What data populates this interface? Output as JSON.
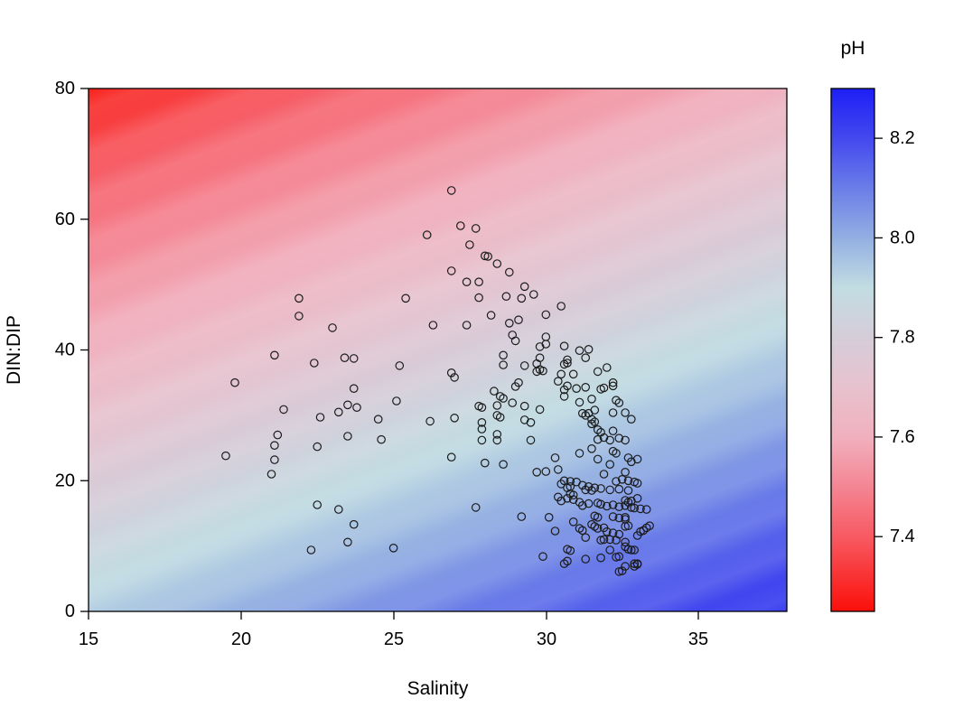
{
  "chart_data": {
    "type": "scatter",
    "title": "",
    "xlabel": "Salinity",
    "ylabel": "DIN:DIP",
    "xlim": [
      15,
      37.9
    ],
    "ylim": [
      0,
      80
    ],
    "x_ticks": [
      15,
      20,
      25,
      30,
      35
    ],
    "x_tick_labels": [
      "15",
      "20",
      "25",
      "30",
      "35"
    ],
    "y_ticks": [
      0,
      20,
      40,
      60,
      80
    ],
    "y_tick_labels": [
      "0",
      "20",
      "40",
      "60",
      "80"
    ],
    "grid": false,
    "legend_position": "right",
    "colorbar": {
      "title": "pH",
      "range": [
        7.25,
        8.3
      ],
      "ticks": [
        8.2,
        8.0,
        7.8,
        7.6,
        7.4
      ],
      "tick_labels": [
        "8.2",
        "8.0",
        "7.8",
        "7.6",
        "7.4"
      ],
      "color_high": "#1d1ff6",
      "color_mid": "#d5cdd9",
      "color_low": "#fb0f0a",
      "gradient_stops_top_to_bottom": [
        "#1d1ff6",
        "#4348ee",
        "#6a7de8",
        "#93afe2",
        "#c2dce2",
        "#d5cdd9",
        "#e7c2ce",
        "#f1b0be",
        "#f48694",
        "#f75a62",
        "#fb0f0a"
      ]
    },
    "background_surface": {
      "variable": "pH",
      "description": "Diagonal gradient fill: pH increases toward bottom-right (high Salinity, low DIN:DIP)",
      "corner_pH": {
        "top_left": 7.3,
        "top_right": 7.62,
        "bottom_left": 7.93,
        "bottom_right": 8.25
      },
      "color_top_left": "#f9201a",
      "color_top_right": "#f5c0ca",
      "color_bottom_left": "#c8d2e0",
      "color_bottom_right": "#3439f1"
    },
    "points": [
      [
        26.9,
        64.4
      ],
      [
        26.1,
        57.6
      ],
      [
        26.9,
        52.1
      ],
      [
        21.9,
        47.9
      ],
      [
        25.4,
        47.9
      ],
      [
        21.9,
        45.2
      ],
      [
        23.0,
        43.4
      ],
      [
        26.3,
        43.8
      ],
      [
        21.1,
        39.2
      ],
      [
        22.4,
        38.0
      ],
      [
        23.4,
        38.8
      ],
      [
        23.7,
        38.7
      ],
      [
        25.2,
        37.6
      ],
      [
        19.8,
        35.0
      ],
      [
        26.9,
        36.5
      ],
      [
        27.0,
        35.8
      ],
      [
        27.2,
        59.0
      ],
      [
        27.7,
        58.6
      ],
      [
        27.5,
        56.1
      ],
      [
        28.0,
        54.4
      ],
      [
        28.1,
        54.3
      ],
      [
        28.4,
        53.2
      ],
      [
        28.8,
        51.9
      ],
      [
        27.4,
        50.4
      ],
      [
        27.8,
        50.4
      ],
      [
        29.3,
        49.7
      ],
      [
        27.8,
        48.0
      ],
      [
        28.7,
        48.2
      ],
      [
        29.2,
        47.9
      ],
      [
        29.6,
        48.5
      ],
      [
        30.5,
        46.7
      ],
      [
        30.0,
        45.4
      ],
      [
        28.2,
        45.3
      ],
      [
        27.4,
        43.8
      ],
      [
        28.8,
        44.1
      ],
      [
        29.1,
        44.6
      ],
      [
        28.9,
        42.3
      ],
      [
        29.0,
        41.4
      ],
      [
        30.0,
        42.0
      ],
      [
        30.0,
        40.9
      ],
      [
        29.8,
        40.5
      ],
      [
        30.6,
        40.6
      ],
      [
        31.1,
        39.9
      ],
      [
        31.4,
        40.1
      ],
      [
        28.6,
        39.2
      ],
      [
        29.8,
        38.8
      ],
      [
        31.3,
        38.8
      ],
      [
        28.6,
        37.7
      ],
      [
        29.3,
        37.6
      ],
      [
        29.7,
        37.9
      ],
      [
        30.7,
        38.5
      ],
      [
        30.7,
        38.0
      ],
      [
        30.6,
        37.8
      ],
      [
        29.8,
        37.0
      ],
      [
        29.7,
        36.7
      ],
      [
        29.9,
        36.8
      ],
      [
        30.5,
        36.3
      ],
      [
        31.7,
        36.7
      ],
      [
        32.0,
        37.3
      ],
      [
        30.9,
        36.3
      ],
      [
        30.4,
        35.2
      ],
      [
        29.1,
        35.0
      ],
      [
        32.2,
        35.0
      ],
      [
        23.7,
        34.1
      ],
      [
        25.1,
        32.2
      ],
      [
        23.5,
        31.6
      ],
      [
        23.8,
        31.2
      ],
      [
        21.4,
        30.9
      ],
      [
        23.2,
        30.5
      ],
      [
        22.6,
        29.7
      ],
      [
        24.5,
        29.4
      ],
      [
        26.2,
        29.1
      ],
      [
        27.0,
        29.6
      ],
      [
        21.2,
        27.0
      ],
      [
        23.5,
        26.8
      ],
      [
        21.1,
        25.4
      ],
      [
        22.5,
        25.2
      ],
      [
        24.6,
        26.3
      ],
      [
        19.5,
        23.8
      ],
      [
        21.1,
        23.2
      ],
      [
        26.9,
        23.6
      ],
      [
        21.0,
        21.0
      ],
      [
        22.5,
        16.3
      ],
      [
        23.2,
        15.6
      ],
      [
        23.7,
        13.3
      ],
      [
        23.5,
        10.6
      ],
      [
        25.0,
        9.7
      ],
      [
        22.3,
        9.4
      ],
      [
        29.0,
        34.4
      ],
      [
        30.6,
        33.9
      ],
      [
        30.7,
        34.5
      ],
      [
        31.0,
        34.1
      ],
      [
        31.3,
        34.3
      ],
      [
        31.8,
        34.0
      ],
      [
        31.9,
        34.2
      ],
      [
        32.2,
        34.5
      ],
      [
        28.3,
        33.7
      ],
      [
        28.5,
        32.9
      ],
      [
        28.6,
        32.6
      ],
      [
        30.6,
        32.9
      ],
      [
        31.1,
        32.0
      ],
      [
        31.5,
        32.5
      ],
      [
        32.3,
        32.3
      ],
      [
        32.4,
        31.9
      ],
      [
        28.9,
        31.9
      ],
      [
        27.8,
        31.4
      ],
      [
        27.9,
        31.2
      ],
      [
        28.4,
        31.5
      ],
      [
        29.3,
        31.4
      ],
      [
        29.8,
        30.9
      ],
      [
        31.6,
        30.8
      ],
      [
        32.2,
        30.4
      ],
      [
        32.6,
        30.4
      ],
      [
        28.4,
        30.0
      ],
      [
        28.5,
        29.7
      ],
      [
        31.2,
        30.3
      ],
      [
        31.3,
        30.0
      ],
      [
        31.4,
        30.3
      ],
      [
        32.8,
        29.4
      ],
      [
        27.9,
        28.9
      ],
      [
        27.9,
        27.9
      ],
      [
        29.3,
        29.3
      ],
      [
        29.5,
        28.9
      ],
      [
        31.5,
        29.4
      ],
      [
        31.6,
        29.0
      ],
      [
        31.5,
        28.7
      ],
      [
        31.7,
        27.8
      ],
      [
        31.8,
        27.4
      ],
      [
        32.2,
        27.6
      ],
      [
        28.4,
        27.1
      ],
      [
        28.4,
        26.2
      ],
      [
        27.9,
        26.2
      ],
      [
        29.5,
        26.2
      ],
      [
        31.9,
        26.6
      ],
      [
        32.1,
        26.2
      ],
      [
        31.7,
        26.3
      ],
      [
        32.4,
        26.5
      ],
      [
        32.6,
        26.2
      ],
      [
        31.5,
        24.9
      ],
      [
        31.1,
        24.2
      ],
      [
        31.7,
        23.3
      ],
      [
        32.1,
        22.5
      ],
      [
        32.2,
        24.5
      ],
      [
        32.3,
        24.2
      ],
      [
        32.7,
        23.5
      ],
      [
        32.8,
        22.9
      ],
      [
        33.0,
        23.3
      ],
      [
        28.0,
        22.7
      ],
      [
        28.6,
        22.5
      ],
      [
        30.3,
        23.5
      ],
      [
        30.4,
        21.7
      ],
      [
        29.7,
        21.3
      ],
      [
        30.0,
        21.4
      ],
      [
        32.6,
        21.3
      ],
      [
        31.9,
        21.0
      ],
      [
        32.5,
        20.2
      ],
      [
        32.3,
        19.9
      ],
      [
        33.0,
        19.6
      ],
      [
        32.7,
        20.0
      ],
      [
        32.9,
        19.8
      ],
      [
        30.6,
        20.0
      ],
      [
        30.8,
        19.9
      ],
      [
        31.0,
        19.8
      ],
      [
        30.7,
        18.9
      ],
      [
        30.8,
        19.1
      ],
      [
        30.5,
        19.5
      ],
      [
        31.2,
        19.3
      ],
      [
        31.4,
        19.1
      ],
      [
        31.6,
        18.9
      ],
      [
        31.8,
        18.8
      ],
      [
        31.3,
        18.6
      ],
      [
        31.5,
        18.5
      ],
      [
        32.1,
        18.6
      ],
      [
        32.4,
        18.7
      ],
      [
        32.7,
        18.5
      ],
      [
        30.4,
        17.5
      ],
      [
        30.7,
        17.3
      ],
      [
        30.5,
        16.9
      ],
      [
        30.9,
        17.1
      ],
      [
        30.8,
        18.0
      ],
      [
        30.9,
        17.8
      ],
      [
        31.1,
        16.7
      ],
      [
        31.4,
        16.5
      ],
      [
        31.7,
        16.6
      ],
      [
        31.2,
        16.2
      ],
      [
        31.8,
        16.4
      ],
      [
        32.0,
        16.1
      ],
      [
        32.2,
        16.3
      ],
      [
        32.4,
        16.0
      ],
      [
        32.6,
        16.2
      ],
      [
        32.6,
        17.0
      ],
      [
        32.7,
        16.7
      ],
      [
        32.8,
        16.9
      ],
      [
        33.0,
        17.3
      ],
      [
        32.8,
        15.9
      ],
      [
        32.9,
        15.8
      ],
      [
        33.1,
        15.7
      ],
      [
        33.3,
        15.6
      ],
      [
        27.7,
        15.9
      ],
      [
        29.2,
        14.5
      ],
      [
        30.1,
        14.4
      ],
      [
        31.6,
        14.6
      ],
      [
        31.7,
        14.4
      ],
      [
        32.2,
        14.5
      ],
      [
        32.4,
        14.3
      ],
      [
        32.6,
        14.1
      ],
      [
        32.6,
        14.4
      ],
      [
        33.4,
        13.1
      ],
      [
        33.3,
        12.8
      ],
      [
        33.2,
        12.4
      ],
      [
        33.1,
        12.2
      ],
      [
        33.0,
        11.6
      ],
      [
        32.7,
        13.1
      ],
      [
        32.6,
        13.0
      ],
      [
        30.3,
        12.3
      ],
      [
        30.9,
        13.7
      ],
      [
        31.1,
        12.7
      ],
      [
        31.2,
        12.4
      ],
      [
        31.3,
        11.3
      ],
      [
        31.5,
        13.3
      ],
      [
        31.6,
        13.0
      ],
      [
        31.7,
        12.7
      ],
      [
        31.9,
        12.8
      ],
      [
        32.0,
        12.2
      ],
      [
        32.2,
        12.0
      ],
      [
        32.4,
        11.8
      ],
      [
        31.8,
        10.9
      ],
      [
        31.9,
        11.0
      ],
      [
        32.1,
        11.0
      ],
      [
        32.3,
        10.9
      ],
      [
        32.6,
        10.6
      ],
      [
        32.6,
        9.9
      ],
      [
        30.7,
        9.5
      ],
      [
        30.8,
        9.3
      ],
      [
        31.3,
        8.0
      ],
      [
        31.8,
        8.2
      ],
      [
        30.7,
        7.7
      ],
      [
        30.6,
        7.3
      ],
      [
        29.9,
        8.4
      ],
      [
        32.3,
        8.3
      ],
      [
        32.4,
        8.4
      ],
      [
        32.1,
        9.4
      ],
      [
        32.8,
        9.4
      ],
      [
        32.7,
        9.5
      ],
      [
        32.9,
        9.4
      ],
      [
        32.4,
        6.1
      ],
      [
        32.5,
        6.2
      ],
      [
        32.9,
        6.9
      ],
      [
        33.0,
        7.2
      ],
      [
        32.9,
        7.3
      ],
      [
        33.0,
        7.3
      ],
      [
        32.6,
        6.9
      ]
    ]
  }
}
